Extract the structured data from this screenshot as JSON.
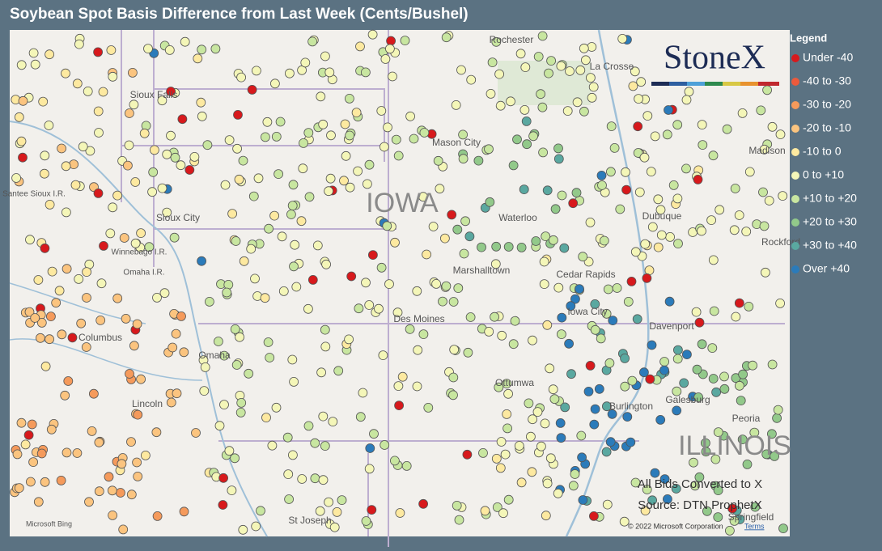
{
  "header": {
    "title": "Soybean Spot Basis Difference from Last Week (Cents/Bushel)"
  },
  "legend": {
    "title": "Legend",
    "items": [
      {
        "label": "Under -40",
        "color": "#d7191c"
      },
      {
        "label": "-40 to -30",
        "color": "#ec5a3c"
      },
      {
        "label": "-30 to -20",
        "color": "#f59a5b"
      },
      {
        "label": "-20 to -10",
        "color": "#fbc47f"
      },
      {
        "label": "-10 to 0",
        "color": "#fde9a0"
      },
      {
        "label": "0 to +10",
        "color": "#f4f6b8"
      },
      {
        "label": "+10 to +20",
        "color": "#c8e6a0"
      },
      {
        "label": "+20 to +30",
        "color": "#92c98a"
      },
      {
        "label": "+30 to +40",
        "color": "#5aa8a0"
      },
      {
        "label": "Over +40",
        "color": "#2b7bba"
      }
    ]
  },
  "logo": "StoneX",
  "map": {
    "labels": [
      "Rochester",
      "La Crosse",
      "Sioux Falls",
      "Mason City",
      "Madison",
      "Santee Sioux I.R.",
      "IOWA",
      "Waterloo",
      "Dubuque",
      "Sioux City",
      "Winnebago I.R.",
      "Omaha I.R.",
      "Marshalltown",
      "Cedar Rapids",
      "Iowa City",
      "Columbus",
      "Des Moines",
      "Davenport",
      "Omaha",
      "Lincoln",
      "Ottumwa",
      "Galesburg",
      "Burlington",
      "Peoria",
      "ILLINOIS",
      "St Joseph",
      "Springfield",
      "Rockford"
    ]
  },
  "notes": [
    "All Bids Converted to X",
    "Source: DTN ProphetX"
  ],
  "footer": {
    "provider": "Microsoft Bing",
    "copyright": "© 2022 Microsoft Corporation",
    "terms": "Terms"
  }
}
